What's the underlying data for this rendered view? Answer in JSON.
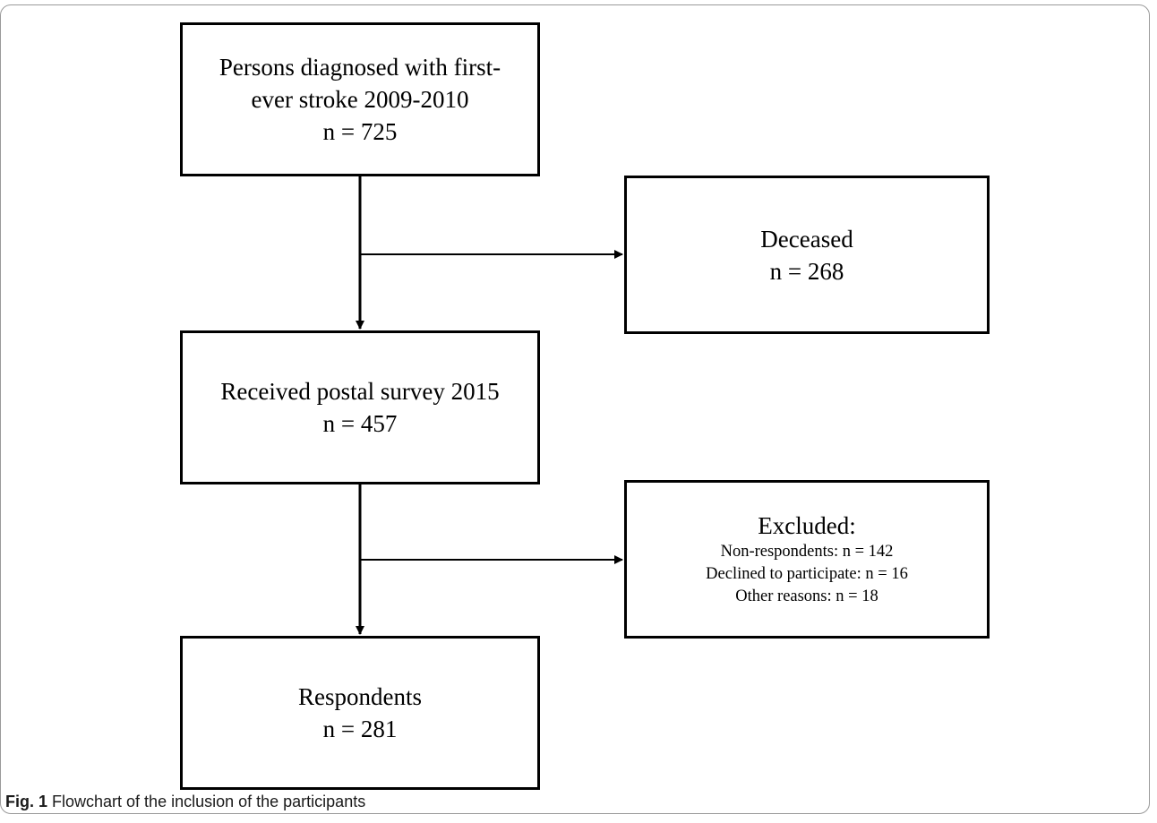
{
  "nodes": {
    "persons": {
      "lines": [
        "Persons diagnosed with first-",
        "ever stroke 2009-2010",
        "n = 725"
      ]
    },
    "deceased": {
      "lines": [
        "Deceased",
        "n = 268"
      ]
    },
    "received": {
      "lines": [
        "Received postal survey 2015",
        "n = 457"
      ]
    },
    "excluded": {
      "title": "Excluded:",
      "details": [
        "Non-respondents: n = 142",
        "Declined to participate: n = 16",
        "Other reasons: n = 18"
      ]
    },
    "respondents": {
      "lines": [
        "Respondents",
        "n = 281"
      ]
    }
  },
  "caption": {
    "label": "Fig. 1",
    "text": " Flowchart of the inclusion of the participants"
  }
}
